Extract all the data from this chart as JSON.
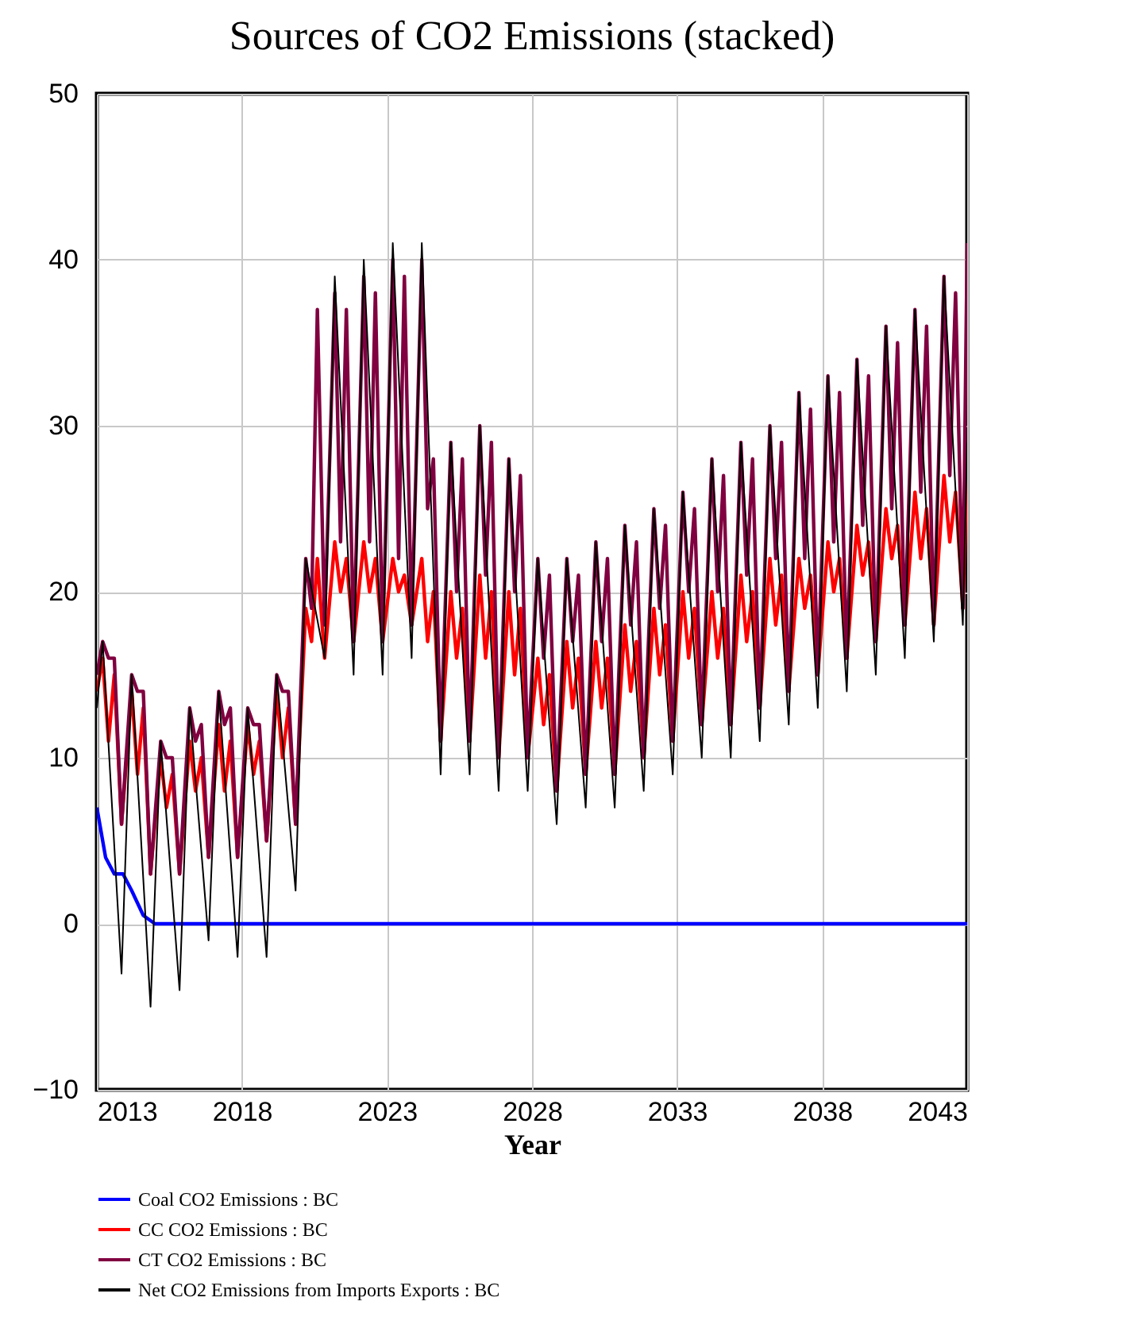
{
  "chart_data": {
    "type": "line",
    "title": "Sources of CO2 Emissions (stacked)",
    "xlabel": "Year",
    "xlim": [
      2013,
      2043
    ],
    "xticks": [
      2013,
      2018,
      2023,
      2028,
      2033,
      2038,
      2043
    ],
    "ylim": [
      -10,
      50
    ],
    "yticks": [
      -10,
      0,
      10,
      20,
      30,
      40,
      50
    ],
    "grid": true,
    "legend": "bottom",
    "line_style": "solid",
    "x": [
      2013,
      2013.2,
      2013.4,
      2013.6,
      2013.85,
      2014.2,
      2014.4,
      2014.6,
      2014.85,
      2015.2,
      2015.4,
      2015.6,
      2015.85,
      2016.2,
      2016.4,
      2016.6,
      2016.85,
      2017.2,
      2017.4,
      2017.6,
      2017.85,
      2018.2,
      2018.4,
      2018.6,
      2018.85,
      2019.2,
      2019.4,
      2019.6,
      2019.85,
      2020.2,
      2020.4,
      2020.6,
      2020.85,
      2021.2,
      2021.4,
      2021.6,
      2021.85,
      2022.2,
      2022.4,
      2022.6,
      2022.85,
      2023.2,
      2023.4,
      2023.6,
      2023.85,
      2024.2,
      2024.4,
      2024.6,
      2024.85,
      2025.2,
      2025.4,
      2025.6,
      2025.85,
      2026.2,
      2026.4,
      2026.6,
      2026.85,
      2027.2,
      2027.4,
      2027.6,
      2027.85,
      2028.2,
      2028.4,
      2028.6,
      2028.85,
      2029.2,
      2029.4,
      2029.6,
      2029.85,
      2030.2,
      2030.4,
      2030.6,
      2030.85,
      2031.2,
      2031.4,
      2031.6,
      2031.85,
      2032.2,
      2032.4,
      2032.6,
      2032.85,
      2033.2,
      2033.4,
      2033.6,
      2033.85,
      2034.2,
      2034.4,
      2034.6,
      2034.85,
      2035.2,
      2035.4,
      2035.6,
      2035.85,
      2036.2,
      2036.4,
      2036.6,
      2036.85,
      2037.2,
      2037.4,
      2037.6,
      2037.85,
      2038.2,
      2038.4,
      2038.6,
      2038.85,
      2039.2,
      2039.4,
      2039.6,
      2039.85,
      2040.2,
      2040.4,
      2040.6,
      2040.85,
      2041.2,
      2041.4,
      2041.6,
      2041.85,
      2042.2,
      2042.4,
      2042.6,
      2042.85,
      2043
    ],
    "series": [
      {
        "name": "Coal CO2 Emissions : BC",
        "color": "#0000ff",
        "x": [
          2013,
          2013.3,
          2013.6,
          2013.9,
          2014.2,
          2014.6,
          2015,
          2043
        ],
        "values": [
          7,
          4,
          3,
          3,
          2,
          0.5,
          0,
          0
        ]
      },
      {
        "name": "CC CO2 Emissions : BC",
        "color": "#ff0000",
        "values": [
          14,
          16,
          11,
          15,
          6,
          14,
          9,
          13,
          3,
          10,
          7,
          9,
          3,
          11,
          8,
          10,
          4,
          12,
          8,
          11,
          4,
          12,
          9,
          11,
          5,
          14,
          10,
          13,
          6,
          19,
          17,
          22,
          16,
          23,
          20,
          22,
          17,
          23,
          20,
          22,
          17,
          22,
          20,
          21,
          18,
          22,
          17,
          20,
          11,
          20,
          16,
          19,
          11,
          21,
          16,
          20,
          10,
          20,
          15,
          19,
          10,
          16,
          12,
          15,
          8,
          17,
          13,
          16,
          9,
          17,
          13,
          16,
          9,
          18,
          14,
          17,
          10,
          19,
          15,
          18,
          11,
          20,
          16,
          19,
          12,
          20,
          16,
          19,
          12,
          21,
          17,
          20,
          13,
          22,
          18,
          21,
          14,
          22,
          19,
          21,
          15,
          23,
          20,
          22,
          16,
          24,
          21,
          23,
          17,
          25,
          22,
          24,
          18,
          26,
          22,
          25,
          18,
          27,
          23,
          26,
          19,
          28
        ]
      },
      {
        "name": "CT CO2 Emissions : BC",
        "color": "#800040",
        "values": [
          15,
          17,
          16,
          16,
          6,
          15,
          14,
          14,
          3,
          11,
          10,
          10,
          3,
          13,
          11,
          12,
          4,
          14,
          12,
          13,
          4,
          13,
          12,
          12,
          5,
          15,
          14,
          14,
          6,
          22,
          19,
          37,
          18,
          38,
          23,
          37,
          17,
          39,
          23,
          38,
          17,
          40,
          22,
          39,
          18,
          40,
          25,
          28,
          11,
          29,
          20,
          28,
          11,
          30,
          21,
          29,
          10,
          28,
          20,
          27,
          10,
          22,
          16,
          21,
          8,
          22,
          17,
          21,
          9,
          23,
          17,
          22,
          9,
          24,
          18,
          23,
          10,
          25,
          19,
          24,
          11,
          26,
          20,
          25,
          12,
          28,
          20,
          27,
          12,
          29,
          21,
          28,
          13,
          30,
          22,
          29,
          14,
          32,
          22,
          31,
          15,
          33,
          23,
          32,
          16,
          34,
          24,
          33,
          17,
          36,
          25,
          35,
          18,
          37,
          26,
          36,
          18,
          39,
          27,
          38,
          19,
          41
        ]
      },
      {
        "name": "Net CO2 Emissions from Imports Exports : BC",
        "color": "#000000",
        "x": [
          2013,
          2013.2,
          2013.85,
          2014.2,
          2014.85,
          2015.2,
          2015.85,
          2016.2,
          2016.85,
          2017.2,
          2017.85,
          2018.2,
          2018.85,
          2019.2,
          2019.85,
          2020.2,
          2020.85,
          2021.2,
          2021.85,
          2022.2,
          2022.85,
          2023.2,
          2023.85,
          2024.2,
          2024.85,
          2025.2,
          2025.85,
          2026.2,
          2026.85,
          2027.2,
          2027.85,
          2028.2,
          2028.85,
          2029.2,
          2029.85,
          2030.2,
          2030.85,
          2031.2,
          2031.85,
          2032.2,
          2032.85,
          2033.2,
          2033.85,
          2034.2,
          2034.85,
          2035.2,
          2035.85,
          2036.2,
          2036.85,
          2037.2,
          2037.85,
          2038.2,
          2038.85,
          2039.2,
          2039.85,
          2040.2,
          2040.85,
          2041.2,
          2041.85,
          2042.2,
          2042.85,
          2043
        ],
        "values": [
          13,
          17,
          -3,
          15,
          -5,
          11,
          -4,
          13,
          -1,
          14,
          -2,
          13,
          -2,
          15,
          2,
          22,
          16,
          39,
          15,
          40,
          15,
          41,
          16,
          41,
          9,
          29,
          9,
          30,
          8,
          28,
          8,
          22,
          6,
          22,
          7,
          23,
          7,
          24,
          8,
          25,
          9,
          26,
          10,
          28,
          10,
          29,
          11,
          30,
          12,
          32,
          13,
          33,
          14,
          34,
          15,
          36,
          16,
          37,
          17,
          39,
          18,
          29
        ]
      }
    ]
  }
}
